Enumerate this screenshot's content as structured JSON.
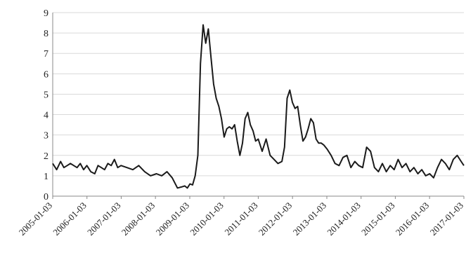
{
  "chart_data": {
    "type": "line",
    "title": "",
    "xlabel": "",
    "ylabel": "",
    "ylim": [
      0,
      9
    ],
    "yticks": [
      0,
      1,
      2,
      3,
      4,
      5,
      6,
      7,
      8,
      9
    ],
    "xlim": [
      "2005-01-03",
      "2017-01-03"
    ],
    "xtick_labels": [
      "2005-01-03",
      "2006-01-03",
      "2007-01-03",
      "2008-01-03",
      "2009-01-03",
      "2010-01-03",
      "2011-01-03",
      "2012-01-03",
      "2013-01-03",
      "2014-01-03",
      "2015-01-03",
      "2016-01-03",
      "2017-01-03"
    ],
    "grid": true,
    "legend": "none",
    "colors": {
      "line": "#1a1a1a",
      "grid": "#d9d9d9",
      "axis": "#888888"
    },
    "series": [
      {
        "x": [
          "2005-01-03",
          "2005-02-14",
          "2005-03-28",
          "2005-05-02",
          "2005-06-06",
          "2005-07-11",
          "2005-08-15",
          "2005-09-19",
          "2005-10-24",
          "2005-11-28",
          "2006-01-02",
          "2006-02-13",
          "2006-03-27",
          "2006-05-01",
          "2006-06-05",
          "2006-07-10",
          "2006-08-14",
          "2006-09-18",
          "2006-10-23",
          "2006-11-27",
          "2007-01-01",
          "2007-03-05",
          "2007-05-07",
          "2007-07-09",
          "2007-09-10",
          "2007-11-12",
          "2008-01-14",
          "2008-03-10",
          "2008-05-05",
          "2008-06-30",
          "2008-08-25",
          "2008-10-06",
          "2008-11-10",
          "2008-12-08",
          "2009-01-05",
          "2009-02-02",
          "2009-03-02",
          "2009-03-30",
          "2009-04-27",
          "2009-05-25",
          "2009-06-22",
          "2009-07-20",
          "2009-08-17",
          "2009-09-14",
          "2009-10-12",
          "2009-11-09",
          "2009-12-07",
          "2010-01-04",
          "2010-02-01",
          "2010-03-01",
          "2010-03-29",
          "2010-04-26",
          "2010-05-24",
          "2010-06-21",
          "2010-07-19",
          "2010-08-16",
          "2010-09-13",
          "2010-10-11",
          "2010-11-08",
          "2010-12-06",
          "2011-01-03",
          "2011-02-14",
          "2011-03-28",
          "2011-05-09",
          "2011-06-20",
          "2011-08-01",
          "2011-09-12",
          "2011-10-10",
          "2011-11-07",
          "2011-12-05",
          "2012-01-02",
          "2012-01-30",
          "2012-02-27",
          "2012-03-26",
          "2012-04-23",
          "2012-05-21",
          "2012-06-18",
          "2012-07-16",
          "2012-08-13",
          "2012-09-10",
          "2012-10-08",
          "2012-11-05",
          "2012-12-03",
          "2013-01-07",
          "2013-02-18",
          "2013-04-01",
          "2013-05-13",
          "2013-06-24",
          "2013-08-05",
          "2013-09-16",
          "2013-10-28",
          "2013-12-09",
          "2014-01-20",
          "2014-03-03",
          "2014-04-14",
          "2014-05-26",
          "2014-07-07",
          "2014-08-18",
          "2014-09-29",
          "2014-11-10",
          "2014-12-22",
          "2015-02-02",
          "2015-03-16",
          "2015-04-27",
          "2015-06-08",
          "2015-07-20",
          "2015-08-31",
          "2015-10-12",
          "2015-11-23",
          "2016-01-04",
          "2016-02-15",
          "2016-03-28",
          "2016-05-09",
          "2016-06-20",
          "2016-08-01",
          "2016-09-12",
          "2016-10-24",
          "2016-12-05",
          "2017-01-03"
        ],
        "values": [
          1.6,
          1.3,
          1.7,
          1.4,
          1.5,
          1.6,
          1.5,
          1.4,
          1.6,
          1.3,
          1.5,
          1.2,
          1.1,
          1.5,
          1.4,
          1.3,
          1.6,
          1.5,
          1.8,
          1.4,
          1.5,
          1.4,
          1.3,
          1.5,
          1.2,
          1.0,
          1.1,
          1.0,
          1.2,
          0.9,
          0.4,
          0.45,
          0.5,
          0.4,
          0.6,
          0.55,
          1.0,
          2.0,
          6.5,
          8.4,
          7.5,
          8.2,
          6.8,
          5.5,
          4.8,
          4.4,
          3.8,
          2.9,
          3.3,
          3.4,
          3.3,
          3.5,
          2.7,
          2.0,
          2.6,
          3.8,
          4.1,
          3.5,
          3.2,
          2.7,
          2.8,
          2.2,
          2.8,
          2.0,
          1.8,
          1.6,
          1.7,
          2.4,
          4.8,
          5.2,
          4.6,
          4.3,
          4.4,
          3.5,
          2.7,
          2.9,
          3.3,
          3.8,
          3.6,
          2.8,
          2.6,
          2.6,
          2.5,
          2.3,
          2.0,
          1.6,
          1.5,
          1.9,
          2.0,
          1.4,
          1.7,
          1.5,
          1.4,
          2.4,
          2.2,
          1.4,
          1.2,
          1.6,
          1.2,
          1.5,
          1.3,
          1.8,
          1.4,
          1.6,
          1.2,
          1.4,
          1.1,
          1.3,
          1.0,
          1.1,
          0.9,
          1.4,
          1.8,
          1.6,
          1.3,
          1.8,
          2.0,
          1.7,
          1.5
        ]
      }
    ]
  }
}
